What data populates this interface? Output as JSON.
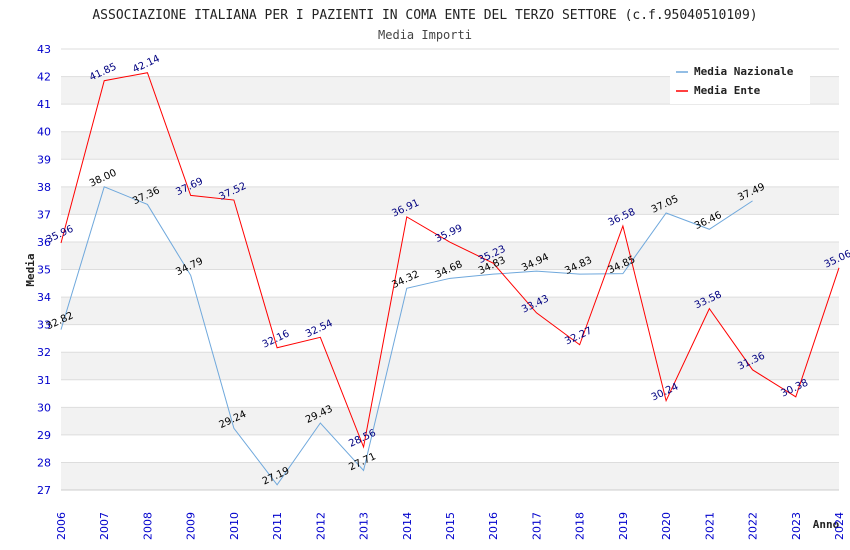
{
  "chart_data": {
    "type": "line",
    "title": "ASSOCIAZIONE ITALIANA PER I PAZIENTI IN COMA ENTE DEL TERZO SETTORE (c.f.95040510109)",
    "subtitle": "Media Importi",
    "xlabel": "Anno",
    "ylabel": "Media",
    "ylim": [
      27,
      43
    ],
    "yticks": [
      "27",
      "28",
      "29",
      "30",
      "31",
      "32",
      "33",
      "34",
      "35",
      "36",
      "37",
      "38",
      "39",
      "40",
      "41",
      "42",
      "43"
    ],
    "categories": [
      "2006",
      "2007",
      "2008",
      "2009",
      "2010",
      "2011",
      "2012",
      "2013",
      "2014",
      "2015",
      "2016",
      "2017",
      "2018",
      "2019",
      "2020",
      "2021",
      "2022",
      "2023",
      "2024"
    ],
    "legend_position": "top-right",
    "series": [
      {
        "name": "Media Nazionale",
        "color": "#6fa8dc",
        "label_color": "#000000",
        "values": [
          32.82,
          38.0,
          37.36,
          34.79,
          29.24,
          27.19,
          29.43,
          27.71,
          34.32,
          34.68,
          34.83,
          34.94,
          34.83,
          34.85,
          37.05,
          36.46,
          37.49,
          null,
          null
        ],
        "labels": [
          "32.82",
          "38.00",
          "37.36",
          "34.79",
          "29.24",
          "27.19",
          "29.43",
          "27.71",
          "34.32",
          "34.68",
          "34.83",
          "34.94",
          "34.83",
          "34.85",
          "37.05",
          "36.46",
          "37.49",
          null,
          null
        ]
      },
      {
        "name": "Media Ente",
        "color": "#ff0000",
        "label_color": "#000080",
        "values": [
          35.96,
          41.85,
          42.14,
          37.69,
          37.52,
          32.16,
          32.54,
          28.56,
          36.91,
          35.99,
          35.23,
          33.43,
          32.27,
          36.58,
          30.24,
          33.58,
          31.36,
          30.38,
          35.06
        ],
        "labels": [
          "35.96",
          "41.85",
          "42.14",
          "37.69",
          "37.52",
          "32.16",
          "32.54",
          "28.56",
          "36.91",
          "35.99",
          "35.23",
          "33.43",
          "32.27",
          "36.58",
          "30.24",
          "33.58",
          "31.36",
          "30.38",
          "35.06"
        ]
      }
    ]
  }
}
